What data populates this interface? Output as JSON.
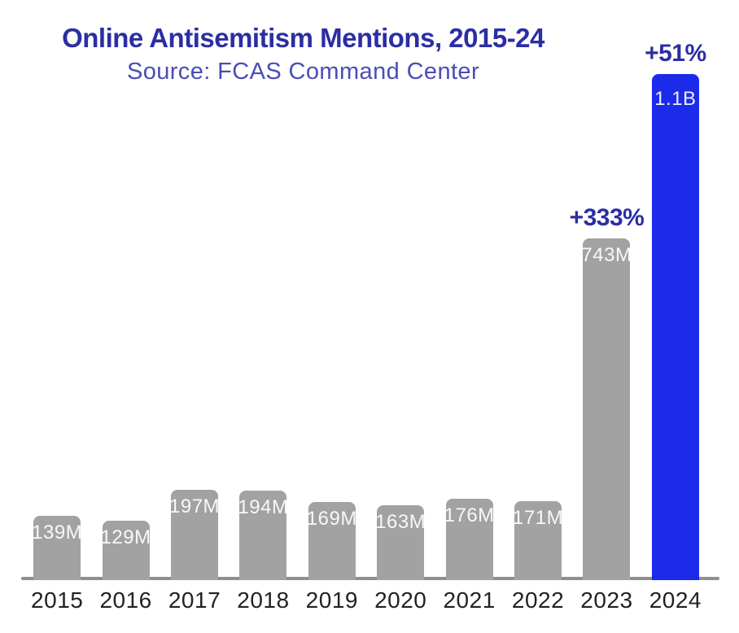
{
  "header": {
    "title": "Online Antisemitism Mentions, 2015-24",
    "subtitle": "Source: FCAS Command Center"
  },
  "colors": {
    "bar_default": "#A2A2A2",
    "bar_highlight": "#1C2BE9",
    "title_text": "#2B2EA3",
    "subtitle_text": "#4A4DB4",
    "annotation_text": "#2B2EA3",
    "axis_line": "#8F8F8F",
    "bar_label_text": "#FFFFFF",
    "tick_label_text": "#222222"
  },
  "chart_data": {
    "type": "bar",
    "title": "Online Antisemitism Mentions, 2015-24",
    "subtitle": "Source: FCAS Command Center",
    "categories": [
      "2015",
      "2016",
      "2017",
      "2018",
      "2019",
      "2020",
      "2021",
      "2022",
      "2023",
      "2024"
    ],
    "values_millions": [
      139,
      129,
      197,
      194,
      169,
      163,
      176,
      171,
      743,
      1100
    ],
    "bar_labels": [
      "139M",
      "129M",
      "197M",
      "194M",
      "169M",
      "163M",
      "176M",
      "171M",
      "743M",
      "1.1B"
    ],
    "annotations": [
      {
        "category": "2023",
        "text": "+333%"
      },
      {
        "category": "2024",
        "text": "+51%"
      }
    ],
    "highlight_category": "2024",
    "xlabel": "",
    "ylabel": "",
    "ylim_millions": [
      0,
      1100
    ],
    "grid": false,
    "legend": false
  }
}
